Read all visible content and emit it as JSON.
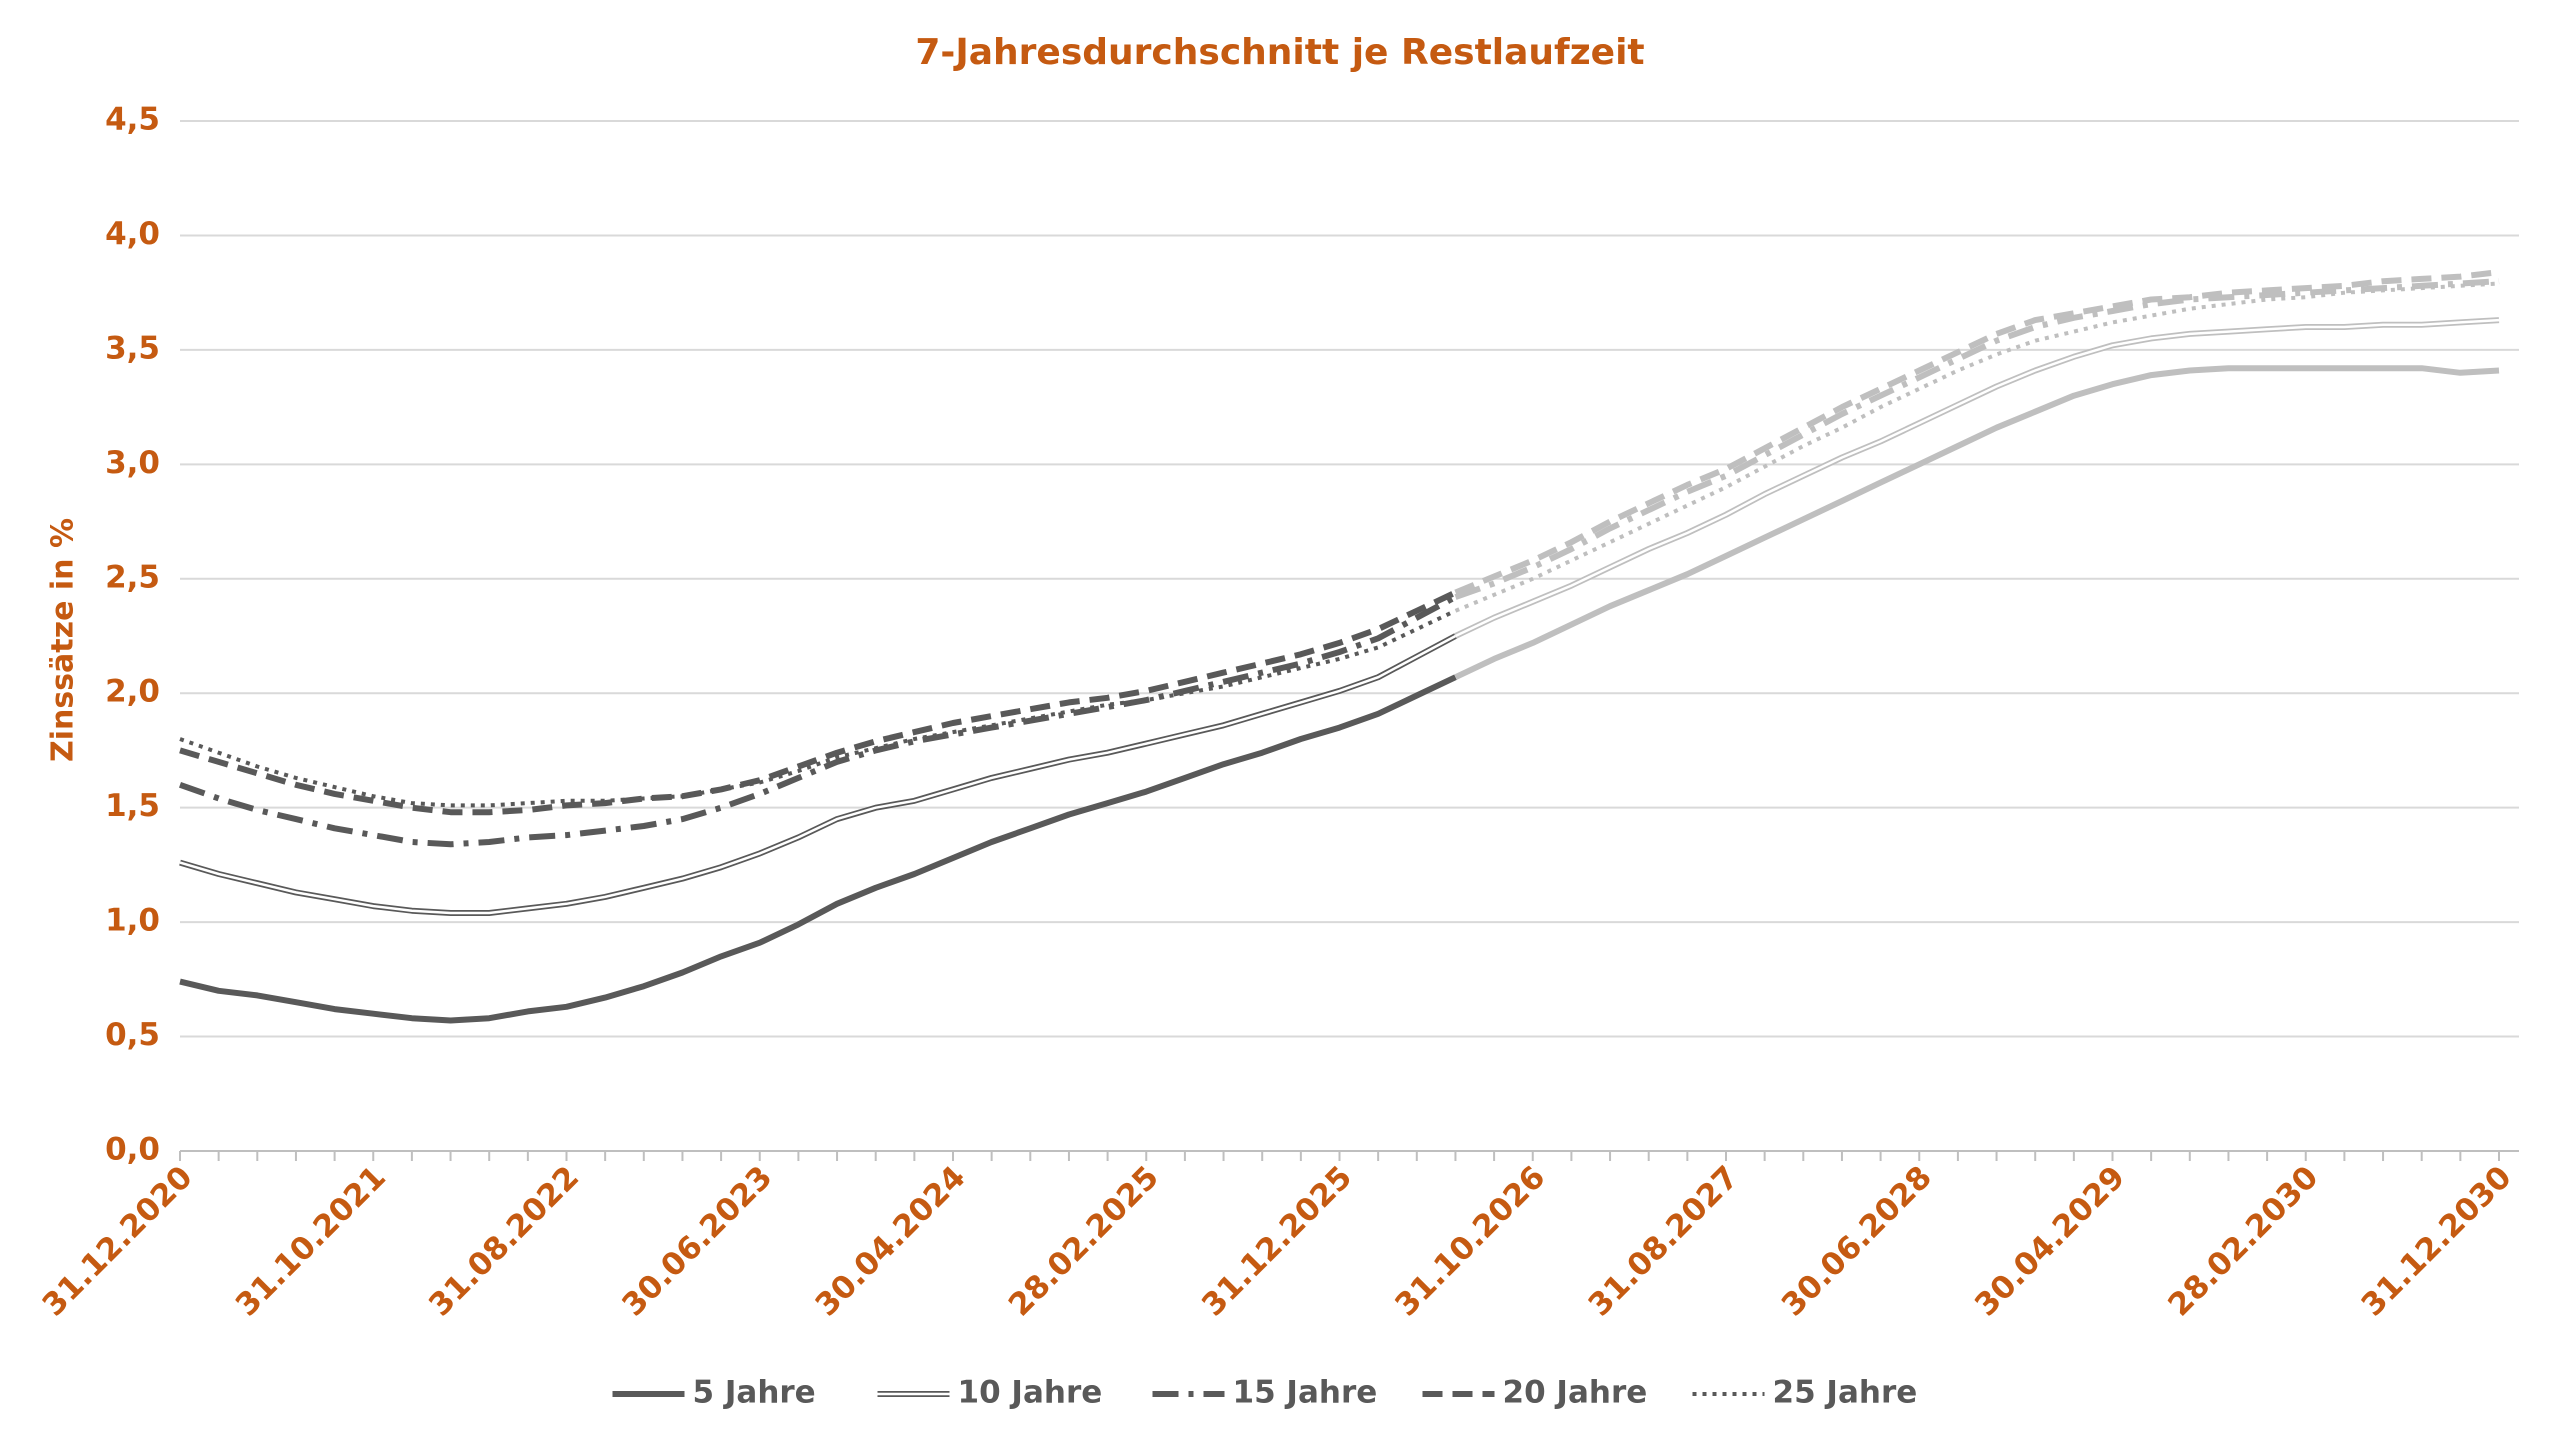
{
  "chart_data": {
    "type": "line",
    "title": "7-Jahresdurchschnitt je Restlaufzeit",
    "y_label": "Zinssätze in %",
    "categories": [
      "31.12.2020",
      null,
      null,
      null,
      null,
      "31.10.2021",
      null,
      null,
      null,
      null,
      "31.08.2022",
      null,
      null,
      null,
      null,
      "30.06.2023",
      null,
      null,
      null,
      null,
      "30.04.2024",
      null,
      null,
      null,
      null,
      "28.02.2025",
      null,
      null,
      null,
      null,
      "31.12.2025",
      null,
      null,
      null,
      null,
      "31.10.2026",
      null,
      null,
      null,
      null,
      "31.08.2027",
      null,
      null,
      null,
      null,
      "30.06.2028",
      null,
      null,
      null,
      null,
      "30.04.2029",
      null,
      null,
      null,
      null,
      "28.02.2030",
      null,
      null,
      null,
      null,
      "31.12.2030"
    ],
    "ylim": [
      0,
      4.5
    ],
    "yticks": [
      {
        "value": 0,
        "label": "0,0"
      },
      {
        "value": 0.5,
        "label": "0,5"
      },
      {
        "value": 1,
        "label": "1,0"
      },
      {
        "value": 1.5,
        "label": "1,5"
      },
      {
        "value": 2,
        "label": "2,0"
      },
      {
        "value": 2.5,
        "label": "2,5"
      },
      {
        "value": 3,
        "label": "3,0"
      },
      {
        "value": 3.5,
        "label": "3,5"
      },
      {
        "value": 4,
        "label": "4,0"
      },
      {
        "value": 4.5,
        "label": "4,5"
      }
    ],
    "grid": true,
    "legend": "bottom",
    "forecast": {
      "from_index": 33,
      "color": "#bfbfbf"
    },
    "series": [
      {
        "name": "5 Jahre",
        "color": "#595959",
        "style": "solid",
        "values": [
          0.74,
          0.7,
          0.68,
          0.65,
          0.62,
          0.6,
          0.58,
          0.57,
          0.58,
          0.61,
          0.63,
          0.67,
          0.72,
          0.78,
          0.85,
          0.91,
          0.99,
          1.08,
          1.15,
          1.21,
          1.28,
          1.35,
          1.41,
          1.47,
          1.52,
          1.57,
          1.63,
          1.69,
          1.74,
          1.8,
          1.85,
          1.91,
          1.99,
          2.07,
          2.15,
          2.22,
          2.3,
          2.38,
          2.45,
          2.52,
          2.6,
          2.68,
          2.76,
          2.84,
          2.92,
          3.0,
          3.08,
          3.16,
          3.23,
          3.3,
          3.35,
          3.39,
          3.41,
          3.42,
          3.42,
          3.42,
          3.42,
          3.42,
          3.42,
          3.4,
          3.41
        ]
      },
      {
        "name": "10 Jahre",
        "color": "#595959",
        "style": "double",
        "values": [
          1.26,
          1.21,
          1.17,
          1.13,
          1.1,
          1.07,
          1.05,
          1.04,
          1.04,
          1.06,
          1.08,
          1.11,
          1.15,
          1.19,
          1.24,
          1.3,
          1.37,
          1.45,
          1.5,
          1.53,
          1.58,
          1.63,
          1.67,
          1.71,
          1.74,
          1.78,
          1.82,
          1.86,
          1.91,
          1.96,
          2.01,
          2.07,
          2.16,
          2.25,
          2.33,
          2.4,
          2.47,
          2.55,
          2.63,
          2.7,
          2.78,
          2.87,
          2.95,
          3.03,
          3.1,
          3.18,
          3.26,
          3.34,
          3.41,
          3.47,
          3.52,
          3.55,
          3.57,
          3.58,
          3.59,
          3.6,
          3.6,
          3.61,
          3.61,
          3.62,
          3.63
        ]
      },
      {
        "name": "15 Jahre",
        "color": "#595959",
        "style": "dashdot",
        "values": [
          1.6,
          1.54,
          1.49,
          1.45,
          1.41,
          1.38,
          1.35,
          1.34,
          1.35,
          1.37,
          1.38,
          1.4,
          1.42,
          1.45,
          1.5,
          1.56,
          1.63,
          1.7,
          1.75,
          1.79,
          1.82,
          1.85,
          1.88,
          1.91,
          1.94,
          1.97,
          2.01,
          2.05,
          2.09,
          2.13,
          2.18,
          2.24,
          2.33,
          2.42,
          2.48,
          2.55,
          2.63,
          2.72,
          2.8,
          2.88,
          2.95,
          3.04,
          3.13,
          3.22,
          3.3,
          3.38,
          3.46,
          3.54,
          3.6,
          3.64,
          3.67,
          3.7,
          3.72,
          3.73,
          3.74,
          3.75,
          3.76,
          3.77,
          3.78,
          3.79,
          3.8
        ]
      },
      {
        "name": "20 Jahre",
        "color": "#595959",
        "style": "dash",
        "values": [
          1.75,
          1.7,
          1.65,
          1.6,
          1.56,
          1.53,
          1.5,
          1.48,
          1.48,
          1.49,
          1.51,
          1.52,
          1.54,
          1.55,
          1.58,
          1.62,
          1.68,
          1.74,
          1.79,
          1.83,
          1.87,
          1.9,
          1.93,
          1.96,
          1.98,
          2.01,
          2.05,
          2.09,
          2.13,
          2.17,
          2.22,
          2.28,
          2.36,
          2.44,
          2.51,
          2.58,
          2.66,
          2.75,
          2.83,
          2.91,
          2.98,
          3.07,
          3.16,
          3.25,
          3.33,
          3.41,
          3.49,
          3.57,
          3.63,
          3.66,
          3.69,
          3.72,
          3.73,
          3.75,
          3.76,
          3.77,
          3.78,
          3.8,
          3.81,
          3.82,
          3.84
        ]
      },
      {
        "name": "25 Jahre",
        "color": "#595959",
        "style": "dot",
        "values": [
          1.8,
          1.74,
          1.68,
          1.63,
          1.59,
          1.55,
          1.52,
          1.51,
          1.51,
          1.52,
          1.53,
          1.53,
          1.54,
          1.55,
          1.58,
          1.61,
          1.66,
          1.72,
          1.76,
          1.8,
          1.83,
          1.86,
          1.89,
          1.92,
          1.95,
          1.97,
          2.0,
          2.03,
          2.07,
          2.11,
          2.15,
          2.2,
          2.28,
          2.36,
          2.43,
          2.5,
          2.58,
          2.66,
          2.74,
          2.82,
          2.9,
          2.99,
          3.08,
          3.16,
          3.25,
          3.33,
          3.41,
          3.48,
          3.54,
          3.58,
          3.62,
          3.65,
          3.68,
          3.7,
          3.72,
          3.73,
          3.75,
          3.76,
          3.77,
          3.78,
          3.79
        ]
      }
    ]
  }
}
